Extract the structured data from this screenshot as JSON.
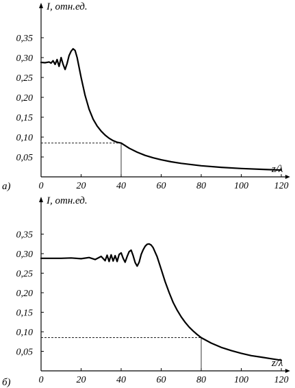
{
  "chart_data": [
    {
      "type": "line",
      "panel_label": "а)",
      "ylabel": "I, отн.ед.",
      "xlabel": "z/λ",
      "xlim": [
        0,
        122
      ],
      "ylim": [
        0,
        0.37
      ],
      "xticks": [
        "0",
        "20",
        "40",
        "60",
        "80",
        "100",
        "120"
      ],
      "yticks": [
        "0,05",
        "0,10",
        "0,15",
        "0,20",
        "0,25",
        "0,30",
        "0,35"
      ],
      "guide": {
        "x": 40,
        "y": 0.085
      },
      "series": [
        {
          "x": [
            0,
            2,
            4,
            5,
            6,
            7,
            8,
            9,
            10,
            11,
            12,
            13,
            14,
            15,
            16,
            17,
            18,
            19,
            20,
            22,
            24,
            26,
            28,
            30,
            32,
            34,
            36,
            38,
            40,
            44,
            48,
            52,
            56,
            60,
            65,
            70,
            80,
            90,
            100,
            110,
            120
          ],
          "y": [
            0.288,
            0.287,
            0.289,
            0.286,
            0.292,
            0.283,
            0.295,
            0.278,
            0.3,
            0.283,
            0.27,
            0.285,
            0.305,
            0.316,
            0.322,
            0.318,
            0.3,
            0.275,
            0.25,
            0.205,
            0.17,
            0.145,
            0.128,
            0.115,
            0.105,
            0.097,
            0.091,
            0.087,
            0.085,
            0.072,
            0.062,
            0.054,
            0.048,
            0.043,
            0.038,
            0.034,
            0.028,
            0.024,
            0.021,
            0.019,
            0.017
          ]
        }
      ]
    },
    {
      "type": "line",
      "panel_label": "б)",
      "ylabel": "I, отн.ед.",
      "xlabel": "z/λ",
      "xlim": [
        0,
        122
      ],
      "ylim": [
        0,
        0.37
      ],
      "xticks": [
        "0",
        "20",
        "40",
        "60",
        "80",
        "100",
        "120"
      ],
      "yticks": [
        "0,05",
        "0,10",
        "0,15",
        "0,20",
        "0,25",
        "0,30",
        "0,35"
      ],
      "guide": {
        "x": 80,
        "y": 0.085
      },
      "series": [
        {
          "x": [
            0,
            10,
            15,
            20,
            24,
            27,
            30,
            32,
            33,
            34,
            35,
            36,
            37,
            38,
            39,
            40,
            41,
            42,
            43,
            44,
            45,
            46,
            47,
            48,
            49,
            50,
            51,
            52,
            53,
            54,
            55,
            56,
            58,
            60,
            62,
            64,
            66,
            68,
            70,
            72,
            74,
            76,
            78,
            80,
            85,
            90,
            95,
            100,
            105,
            110,
            115,
            120
          ],
          "y": [
            0.288,
            0.288,
            0.289,
            0.287,
            0.29,
            0.285,
            0.293,
            0.282,
            0.296,
            0.28,
            0.297,
            0.281,
            0.295,
            0.28,
            0.298,
            0.302,
            0.288,
            0.278,
            0.293,
            0.305,
            0.309,
            0.295,
            0.277,
            0.268,
            0.278,
            0.298,
            0.31,
            0.319,
            0.324,
            0.325,
            0.322,
            0.315,
            0.292,
            0.26,
            0.228,
            0.2,
            0.175,
            0.155,
            0.138,
            0.124,
            0.112,
            0.102,
            0.093,
            0.085,
            0.071,
            0.06,
            0.052,
            0.045,
            0.039,
            0.035,
            0.031,
            0.027
          ]
        }
      ]
    }
  ]
}
